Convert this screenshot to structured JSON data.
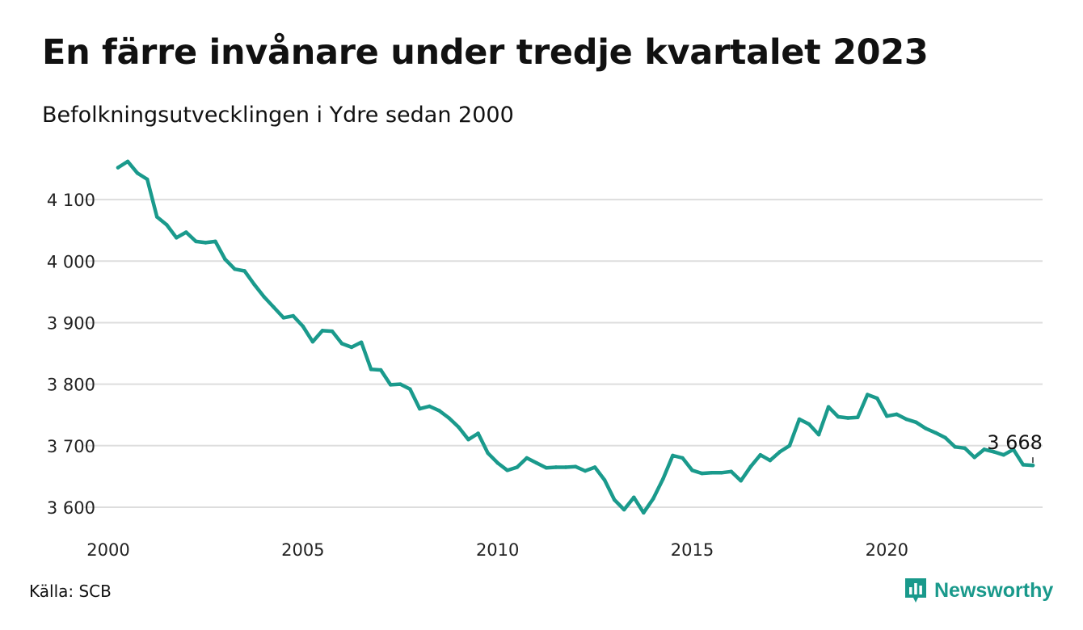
{
  "title": "En färre invånare under tredje kvartalet 2023",
  "subtitle": "Befolkningsutvecklingen i Ydre sedan 2000",
  "source": "Källa: SCB",
  "brand": {
    "name": "Newsworthy",
    "icon": "newsworthy-logo-icon",
    "color": "#19998b"
  },
  "chart_data": {
    "type": "line",
    "title": "En färre invånare under tredje kvartalet 2023",
    "subtitle": "Befolkningsutvecklingen i Ydre sedan 2000",
    "xlabel": "",
    "ylabel": "",
    "xlim": [
      2000.0,
      2024.0
    ],
    "ylim": [
      3575,
      4175
    ],
    "x_ticks": [
      2000,
      2005,
      2010,
      2015,
      2020
    ],
    "x_tick_labels": [
      "2000",
      "2005",
      "2010",
      "2015",
      "2020"
    ],
    "y_ticks": [
      3600,
      3700,
      3800,
      3900,
      4000,
      4100
    ],
    "y_tick_labels": [
      "3 600",
      "3 700",
      "3 800",
      "3 900",
      "4 000",
      "4 100"
    ],
    "grid": "horizontal",
    "line_color": "#1a9a8c",
    "series": [
      {
        "values": [
          {
            "x": 2000.25,
            "y": 4152
          },
          {
            "x": 2000.5,
            "y": 4162
          },
          {
            "x": 2000.75,
            "y": 4143
          },
          {
            "x": 2001.0,
            "y": 4133
          },
          {
            "x": 2001.25,
            "y": 4072
          },
          {
            "x": 2001.5,
            "y": 4059
          },
          {
            "x": 2001.75,
            "y": 4038
          },
          {
            "x": 2002.0,
            "y": 4047
          },
          {
            "x": 2002.25,
            "y": 4032
          },
          {
            "x": 2002.5,
            "y": 4030
          },
          {
            "x": 2002.75,
            "y": 4032
          },
          {
            "x": 2003.0,
            "y": 4003
          },
          {
            "x": 2003.25,
            "y": 3987
          },
          {
            "x": 2003.5,
            "y": 3984
          },
          {
            "x": 2003.75,
            "y": 3962
          },
          {
            "x": 2004.0,
            "y": 3942
          },
          {
            "x": 2004.25,
            "y": 3925
          },
          {
            "x": 2004.5,
            "y": 3908
          },
          {
            "x": 2004.75,
            "y": 3911
          },
          {
            "x": 2005.0,
            "y": 3894
          },
          {
            "x": 2005.25,
            "y": 3869
          },
          {
            "x": 2005.5,
            "y": 3887
          },
          {
            "x": 2005.75,
            "y": 3886
          },
          {
            "x": 2006.0,
            "y": 3866
          },
          {
            "x": 2006.25,
            "y": 3860
          },
          {
            "x": 2006.5,
            "y": 3868
          },
          {
            "x": 2006.75,
            "y": 3824
          },
          {
            "x": 2007.0,
            "y": 3823
          },
          {
            "x": 2007.25,
            "y": 3799
          },
          {
            "x": 2007.5,
            "y": 3800
          },
          {
            "x": 2007.75,
            "y": 3792
          },
          {
            "x": 2008.0,
            "y": 3760
          },
          {
            "x": 2008.25,
            "y": 3764
          },
          {
            "x": 2008.5,
            "y": 3757
          },
          {
            "x": 2008.75,
            "y": 3745
          },
          {
            "x": 2009.0,
            "y": 3730
          },
          {
            "x": 2009.25,
            "y": 3710
          },
          {
            "x": 2009.5,
            "y": 3720
          },
          {
            "x": 2009.75,
            "y": 3688
          },
          {
            "x": 2010.0,
            "y": 3672
          },
          {
            "x": 2010.25,
            "y": 3660
          },
          {
            "x": 2010.5,
            "y": 3665
          },
          {
            "x": 2010.75,
            "y": 3680
          },
          {
            "x": 2011.0,
            "y": 3672
          },
          {
            "x": 2011.25,
            "y": 3664
          },
          {
            "x": 2011.5,
            "y": 3665
          },
          {
            "x": 2011.75,
            "y": 3665
          },
          {
            "x": 2012.0,
            "y": 3666
          },
          {
            "x": 2012.25,
            "y": 3659
          },
          {
            "x": 2012.5,
            "y": 3665
          },
          {
            "x": 2012.75,
            "y": 3644
          },
          {
            "x": 2013.0,
            "y": 3612
          },
          {
            "x": 2013.25,
            "y": 3596
          },
          {
            "x": 2013.5,
            "y": 3616
          },
          {
            "x": 2013.75,
            "y": 3591
          },
          {
            "x": 2014.0,
            "y": 3614
          },
          {
            "x": 2014.25,
            "y": 3646
          },
          {
            "x": 2014.5,
            "y": 3684
          },
          {
            "x": 2014.75,
            "y": 3680
          },
          {
            "x": 2015.0,
            "y": 3660
          },
          {
            "x": 2015.25,
            "y": 3655
          },
          {
            "x": 2015.5,
            "y": 3656
          },
          {
            "x": 2015.75,
            "y": 3656
          },
          {
            "x": 2016.0,
            "y": 3658
          },
          {
            "x": 2016.25,
            "y": 3643
          },
          {
            "x": 2016.5,
            "y": 3666
          },
          {
            "x": 2016.75,
            "y": 3685
          },
          {
            "x": 2017.0,
            "y": 3676
          },
          {
            "x": 2017.25,
            "y": 3690
          },
          {
            "x": 2017.5,
            "y": 3700
          },
          {
            "x": 2017.75,
            "y": 3743
          },
          {
            "x": 2018.0,
            "y": 3735
          },
          {
            "x": 2018.25,
            "y": 3718
          },
          {
            "x": 2018.5,
            "y": 3763
          },
          {
            "x": 2018.75,
            "y": 3747
          },
          {
            "x": 2019.0,
            "y": 3745
          },
          {
            "x": 2019.25,
            "y": 3746
          },
          {
            "x": 2019.5,
            "y": 3783
          },
          {
            "x": 2019.75,
            "y": 3777
          },
          {
            "x": 2020.0,
            "y": 3748
          },
          {
            "x": 2020.25,
            "y": 3751
          },
          {
            "x": 2020.5,
            "y": 3743
          },
          {
            "x": 2020.75,
            "y": 3738
          },
          {
            "x": 2021.0,
            "y": 3728
          },
          {
            "x": 2021.25,
            "y": 3721
          },
          {
            "x": 2021.5,
            "y": 3713
          },
          {
            "x": 2021.75,
            "y": 3698
          },
          {
            "x": 2022.0,
            "y": 3696
          },
          {
            "x": 2022.25,
            "y": 3681
          },
          {
            "x": 2022.5,
            "y": 3694
          },
          {
            "x": 2022.75,
            "y": 3690
          },
          {
            "x": 2023.0,
            "y": 3685
          },
          {
            "x": 2023.25,
            "y": 3694
          },
          {
            "x": 2023.5,
            "y": 3669
          },
          {
            "x": 2023.75,
            "y": 3668
          }
        ]
      }
    ],
    "annotations": [
      {
        "text": "3 668",
        "x": 2023.75,
        "y": 3668
      }
    ]
  }
}
